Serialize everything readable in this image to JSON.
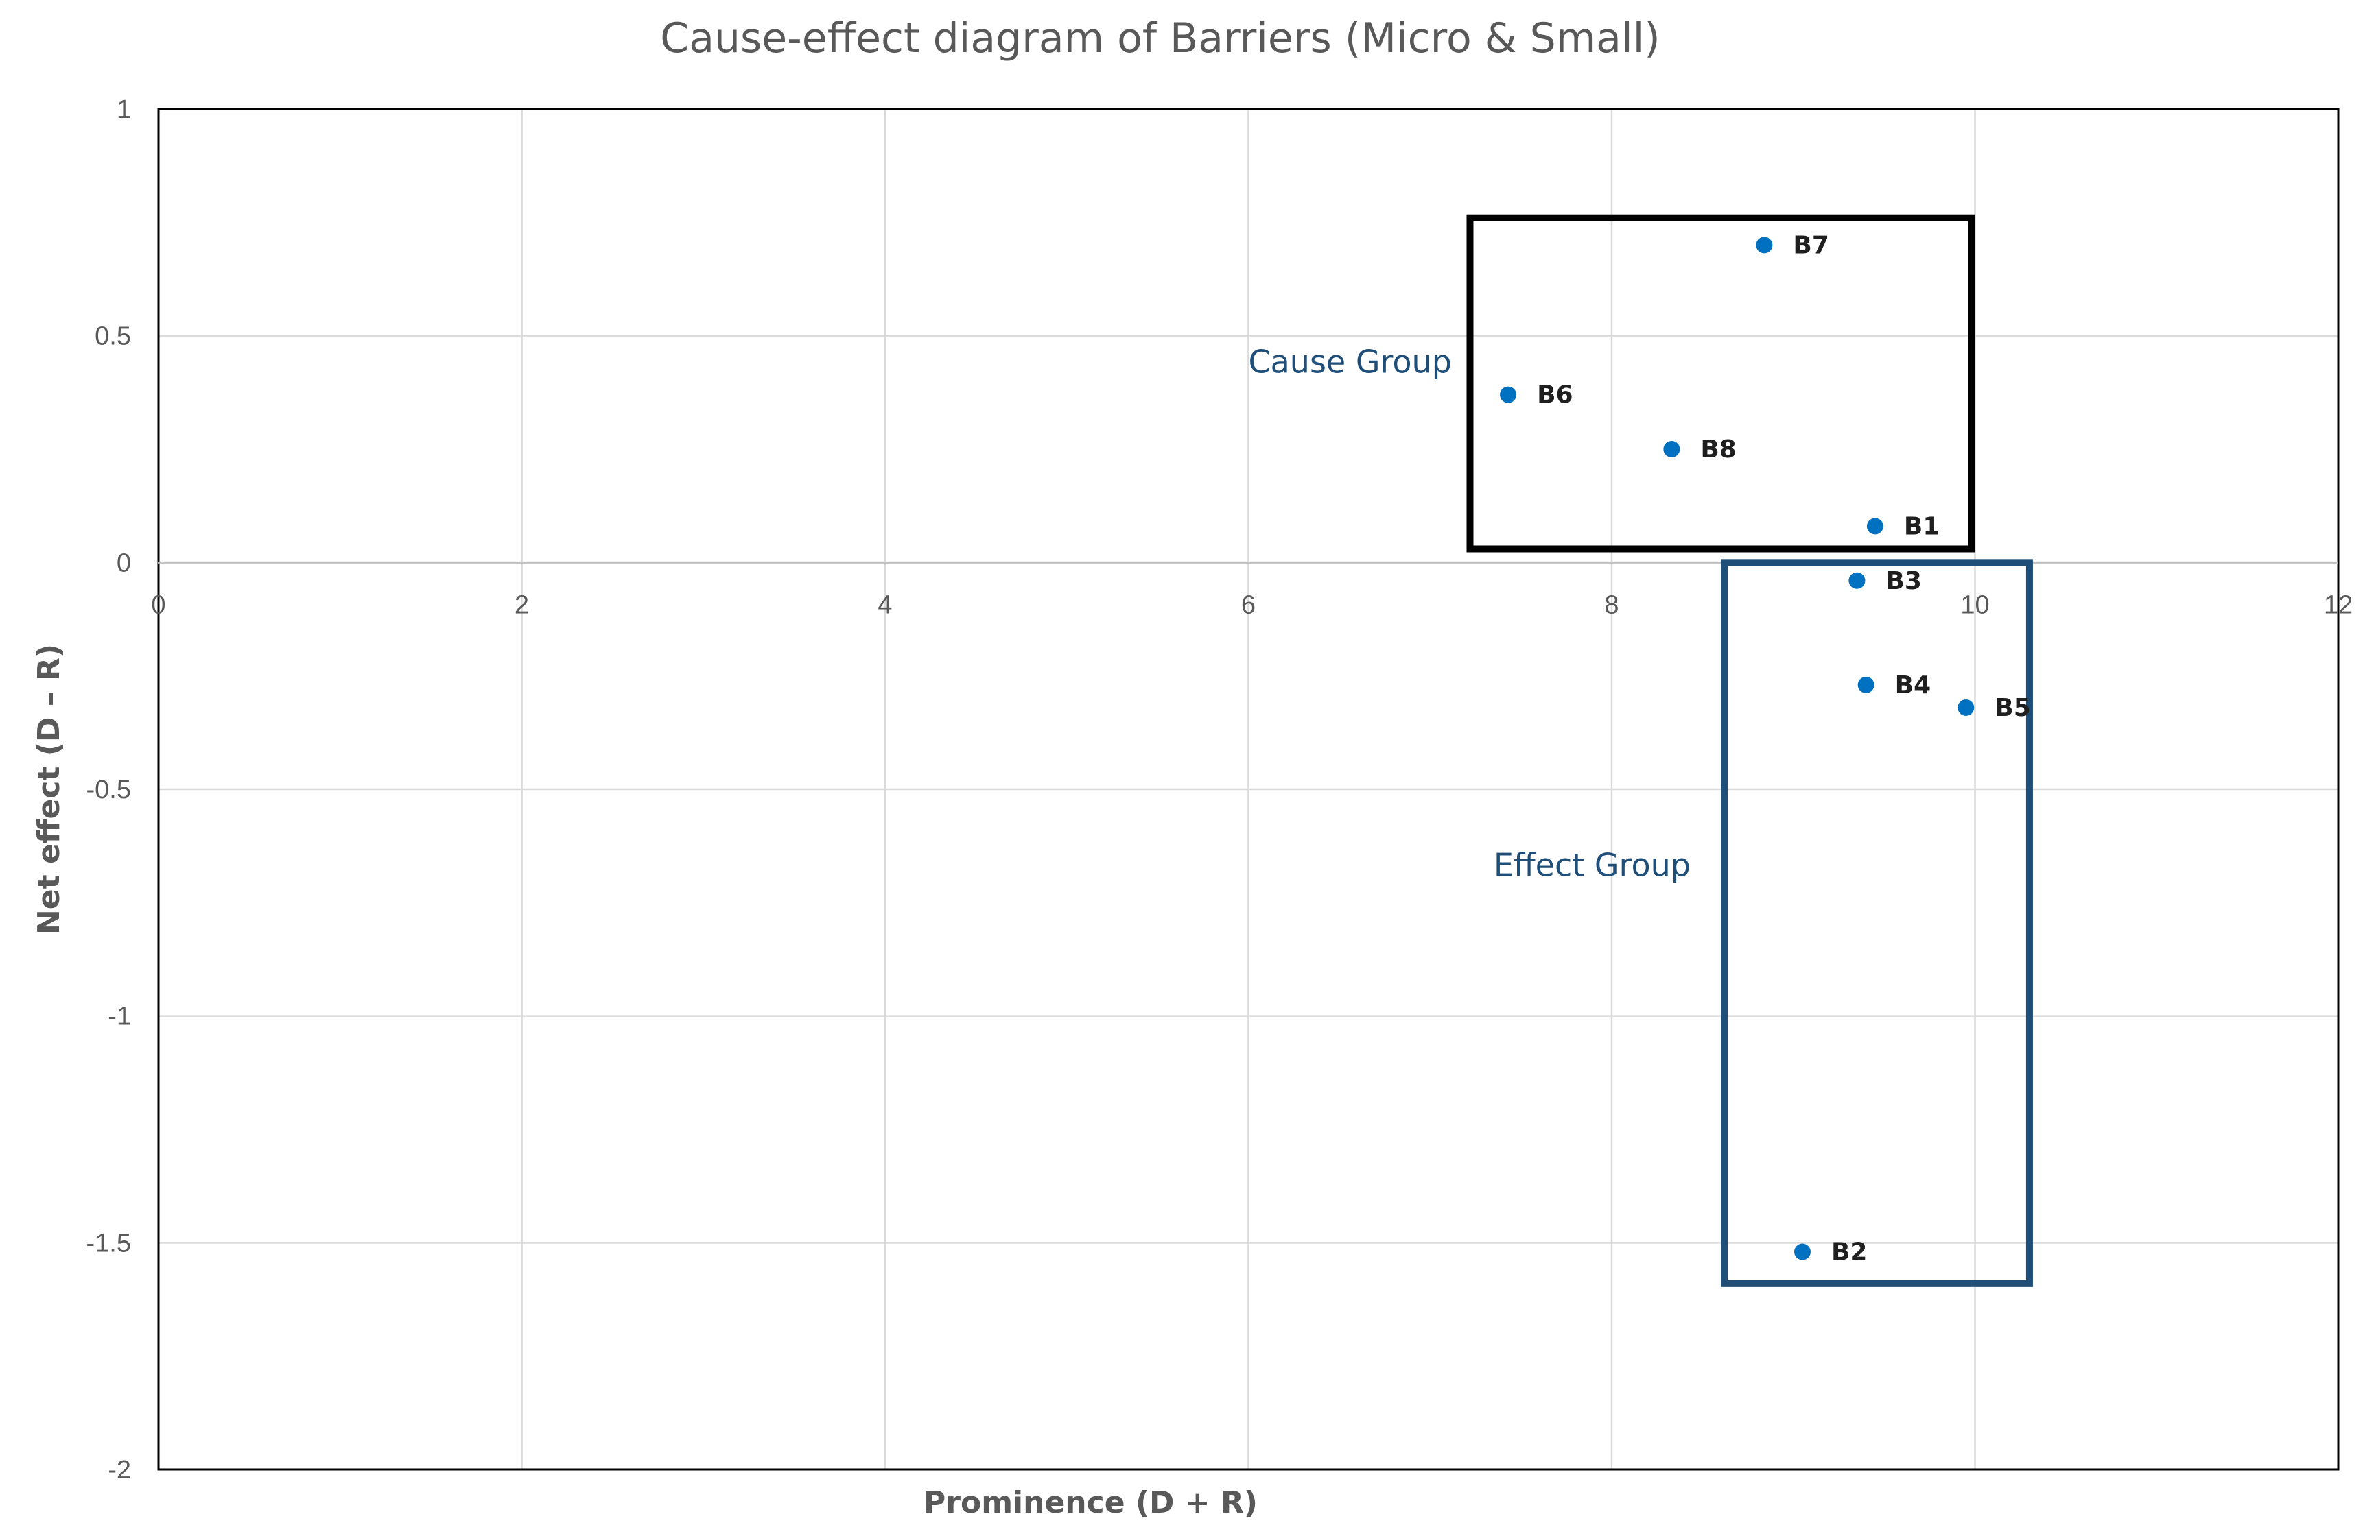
{
  "chart_data": {
    "type": "scatter",
    "title": "Cause-effect diagram of Barriers (Micro & Small)",
    "xlabel": "Prominence (D + R)",
    "ylabel": "Net effect (D – R)",
    "xlim": [
      0,
      12
    ],
    "ylim": [
      -2,
      1
    ],
    "x_ticks": [
      0,
      2,
      4,
      6,
      8,
      10,
      12
    ],
    "y_ticks": [
      1,
      0.5,
      0,
      -0.5,
      -1,
      -1.5,
      -2
    ],
    "grid": true,
    "marker_color": "#0070C0",
    "series": [
      {
        "name": "Barriers",
        "points": [
          {
            "label": "B1",
            "x": 9.45,
            "y": 0.08
          },
          {
            "label": "B2",
            "x": 9.05,
            "y": -1.52
          },
          {
            "label": "B3",
            "x": 9.35,
            "y": -0.04
          },
          {
            "label": "B4",
            "x": 9.4,
            "y": -0.27
          },
          {
            "label": "B5",
            "x": 9.95,
            "y": -0.32
          },
          {
            "label": "B6",
            "x": 7.43,
            "y": 0.37
          },
          {
            "label": "B7",
            "x": 8.84,
            "y": 0.7
          },
          {
            "label": "B8",
            "x": 8.33,
            "y": 0.25
          }
        ]
      }
    ],
    "annotations": [
      {
        "text": "Cause Group",
        "color": "#1F4E79",
        "box_color": "#000000",
        "x_range": [
          7.22,
          9.98
        ],
        "y_range": [
          0.03,
          0.76
        ],
        "text_anchor": {
          "x": 6.0,
          "y": 0.44
        }
      },
      {
        "text": "Effect Group",
        "color": "#1F4E79",
        "box_color": "#1F4E79",
        "x_range": [
          8.62,
          10.3
        ],
        "y_range": [
          -1.59,
          0.0
        ],
        "text_anchor": {
          "x": 7.35,
          "y": -0.67
        }
      }
    ]
  }
}
